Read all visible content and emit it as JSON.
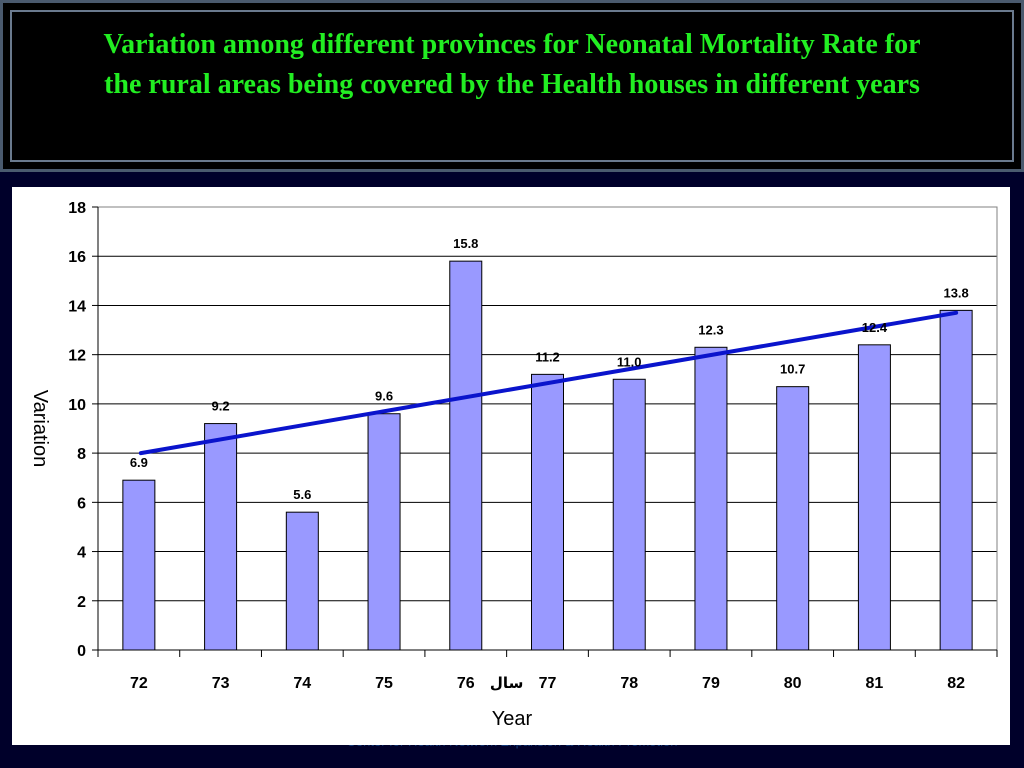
{
  "slide": {
    "title": "Variation among different provinces for Neonatal Mortality Rate for\nthe rural areas being covered by the Health houses in different years",
    "footer": "Center for Health Network Expansion & Health Promotion"
  },
  "chart_data": {
    "type": "bar",
    "categories": [
      "72",
      "73",
      "74",
      "75",
      "76",
      "77",
      "78",
      "79",
      "80",
      "81",
      "82"
    ],
    "series": [
      {
        "values": [
          6.9,
          9.2,
          5.6,
          9.6,
          15.8,
          11.2,
          11.0,
          12.3,
          10.7,
          12.4,
          13.8
        ]
      }
    ],
    "data_labels": [
      "6.9",
      "9.2",
      "5.6",
      "9.6",
      "15.8",
      "11.2",
      "11.0",
      "12.3",
      "10.7",
      "12.4",
      "13.8"
    ],
    "trendline": {
      "type": "linear",
      "start": 8.0,
      "end": 13.7
    },
    "xlabel": "Year",
    "xlabel_secondary": "سال",
    "ylabel": "Variation",
    "ylim": [
      0,
      18
    ],
    "yticks": [
      0,
      2,
      4,
      6,
      8,
      10,
      12,
      14,
      16,
      18
    ],
    "grid": true,
    "legend": "none",
    "colors": {
      "bar_fill": "#9999ff",
      "bar_stroke": "#000000",
      "trendline": "#0a14cc"
    }
  }
}
